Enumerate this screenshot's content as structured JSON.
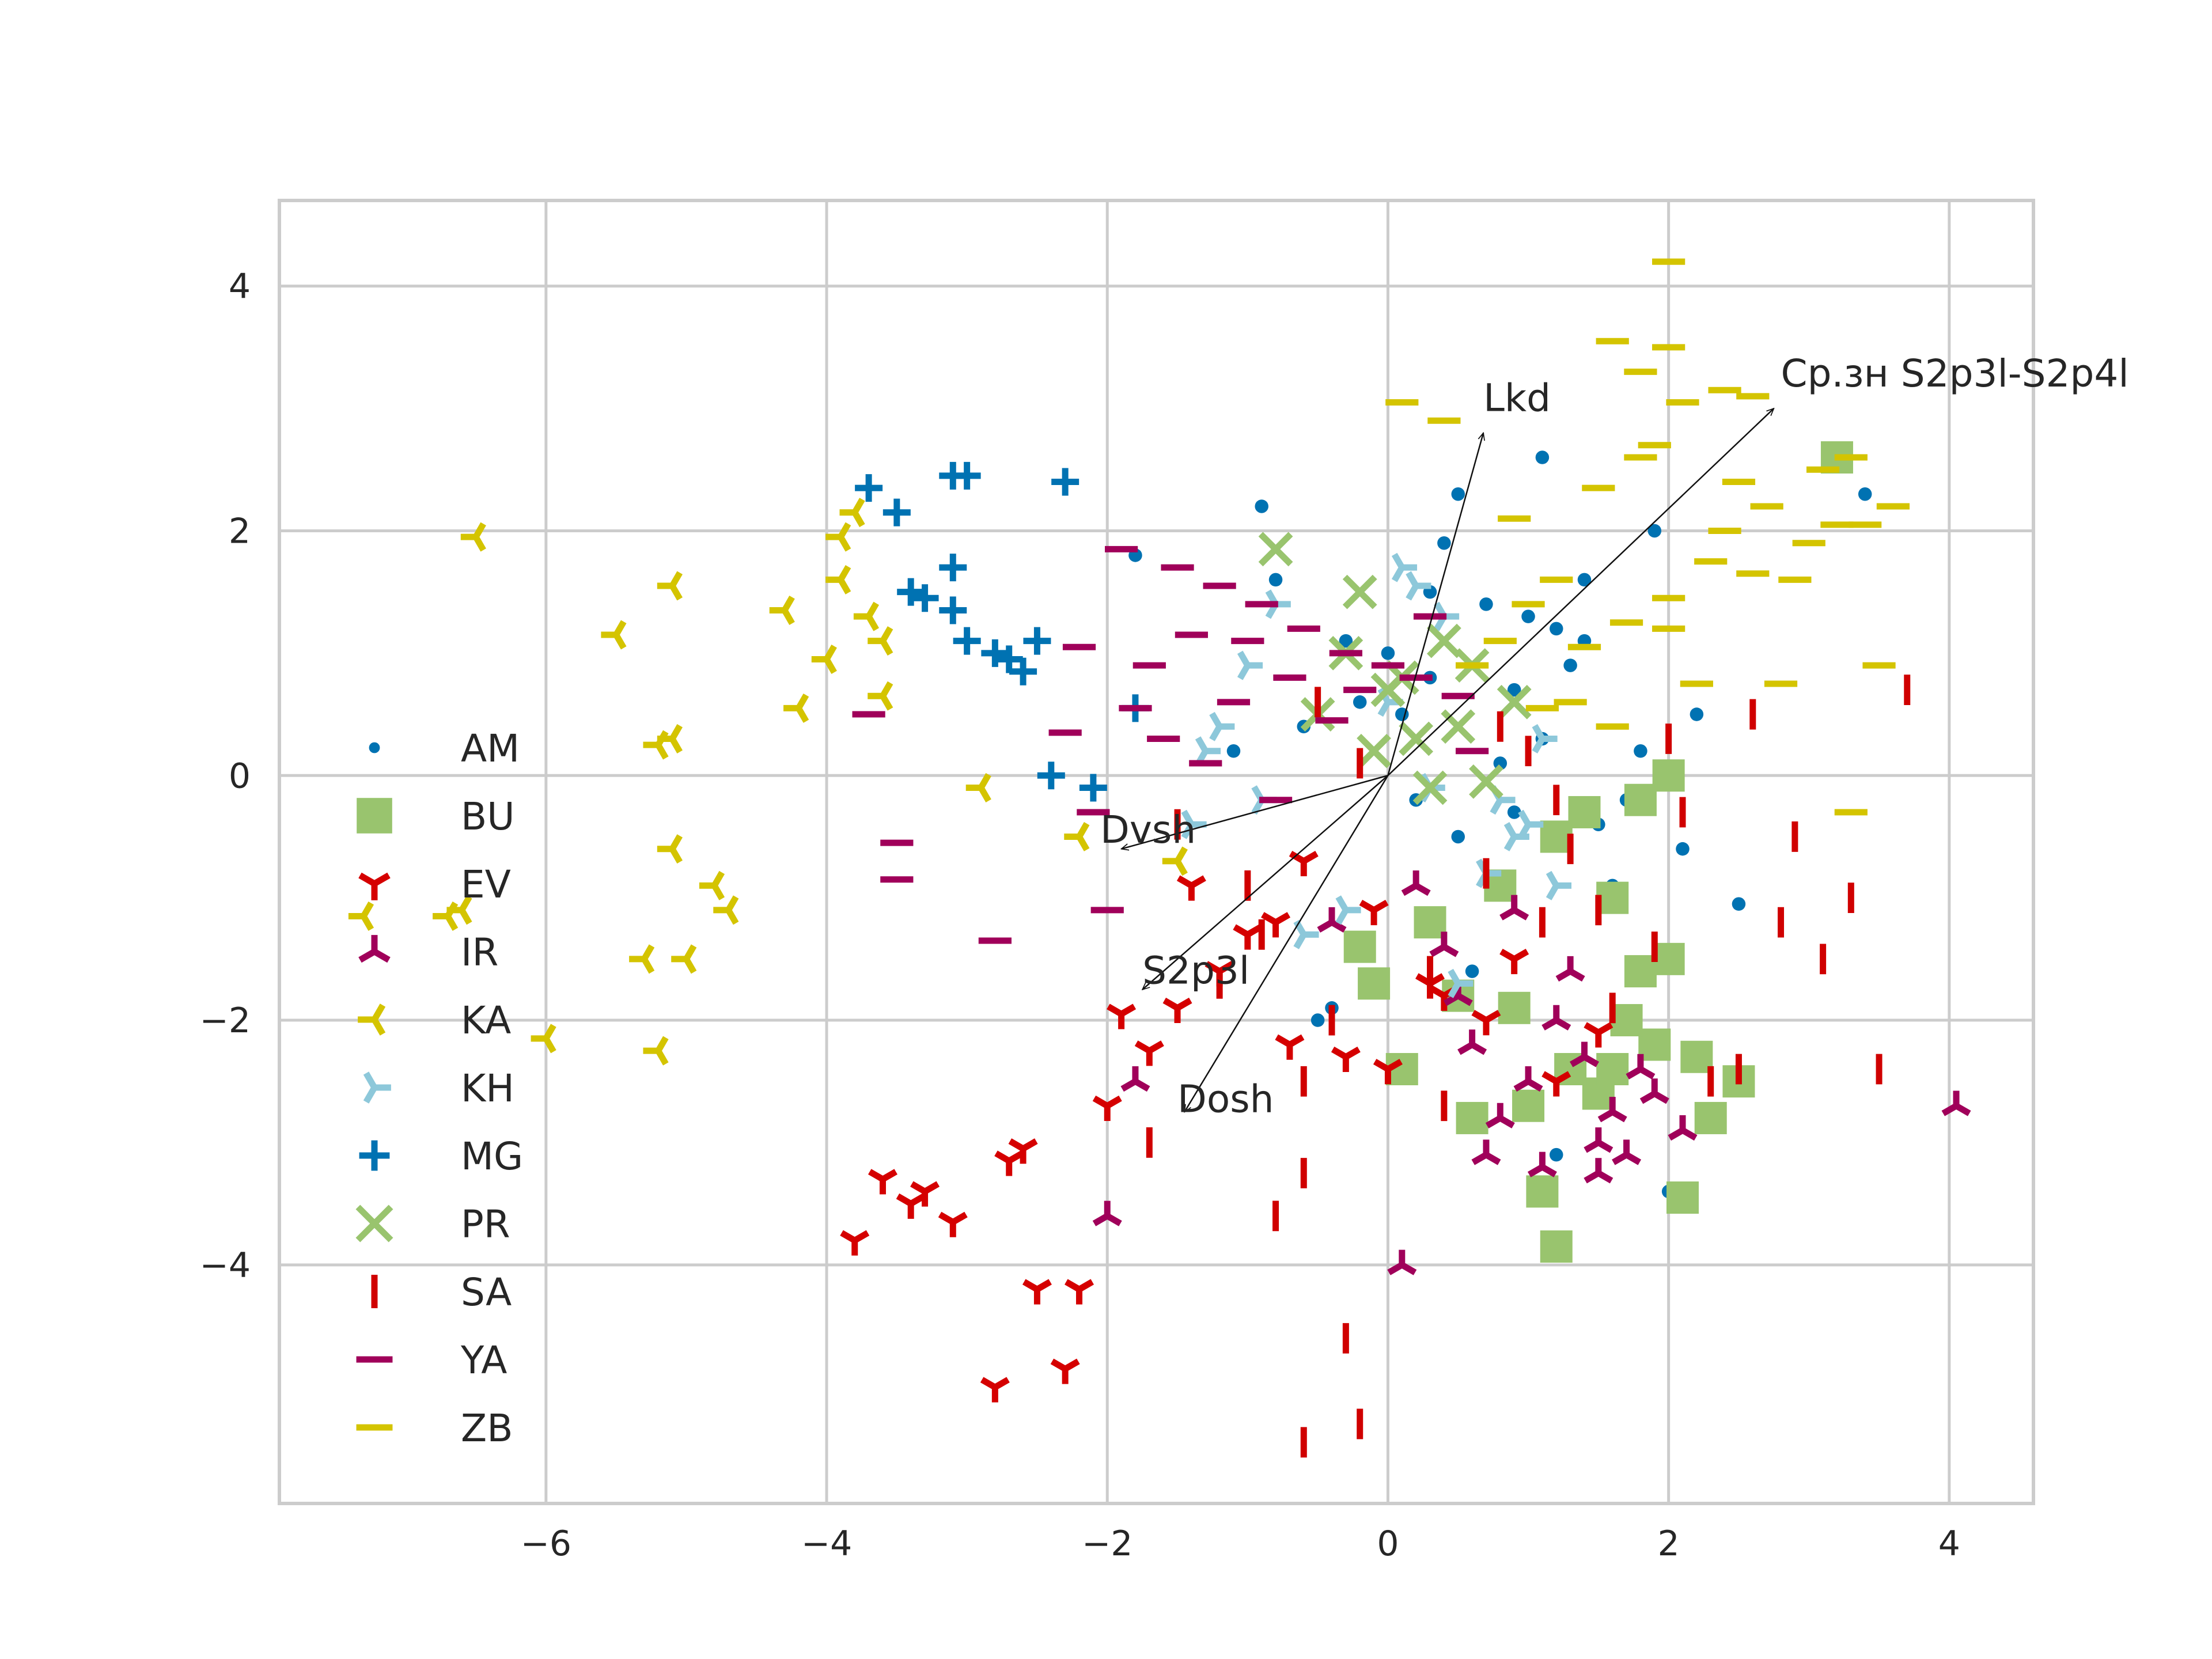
{
  "chart_data": {
    "type": "scatter",
    "title": "",
    "xlabel": "",
    "ylabel": "",
    "xlim": [
      -7.9,
      4.6
    ],
    "ylim": [
      -5.95,
      4.7
    ],
    "xticks": [
      -6,
      -4,
      -2,
      0,
      2,
      4
    ],
    "yticks": [
      -4,
      -2,
      0,
      2,
      4
    ],
    "grid": true,
    "legend_position": "left",
    "series": [
      {
        "name": "AM",
        "marker": "dot",
        "color": "#0072B2",
        "x": [
          1.1,
          0.5,
          1.4,
          1.9,
          3.4,
          -0.9,
          2.5,
          1.2,
          1.0,
          0.3,
          1.6,
          1.8,
          2.1,
          2.0,
          -1.8,
          -0.8,
          0.7,
          0.9,
          1.3,
          -0.3,
          0.2,
          0.6,
          -0.6,
          0.8,
          1.5,
          2.2,
          -0.4,
          1.1,
          0.4,
          -0.2,
          0.0,
          1.7,
          0.5,
          -1.1,
          1.2,
          0.1,
          0.9,
          1.4,
          -0.5,
          0.3
        ],
        "y": [
          2.6,
          2.3,
          1.6,
          2.0,
          2.3,
          2.2,
          -1.05,
          -3.1,
          1.3,
          0.8,
          -0.9,
          0.2,
          -0.6,
          -3.4,
          1.8,
          1.6,
          1.4,
          0.7,
          0.9,
          1.1,
          -0.2,
          -1.6,
          0.4,
          0.1,
          -0.4,
          0.5,
          -1.9,
          0.3,
          1.9,
          0.6,
          1.0,
          -0.2,
          -0.5,
          0.2,
          1.2,
          0.5,
          -0.3,
          1.1,
          -2.0,
          1.5
        ]
      },
      {
        "name": "BU",
        "marker": "square",
        "color": "#99C46E",
        "x": [
          3.2,
          1.2,
          1.1,
          2.1,
          2.2,
          2.5,
          1.6,
          1.8,
          2.0,
          1.5,
          1.3,
          0.6,
          1.0,
          0.9,
          0.1,
          -0.1,
          0.5,
          2.3,
          1.9,
          1.7,
          1.4,
          1.2,
          0.8,
          0.3,
          -0.2,
          2.0,
          1.8,
          1.6
        ],
        "y": [
          2.6,
          -3.85,
          -3.4,
          -3.45,
          -2.3,
          -2.5,
          -1.0,
          -1.6,
          -1.5,
          -2.6,
          -2.4,
          -2.8,
          -2.7,
          -1.9,
          -2.4,
          -1.7,
          -1.8,
          -2.8,
          -2.2,
          -2.0,
          -0.3,
          -0.5,
          -0.9,
          -1.2,
          -1.4,
          0.0,
          -0.2,
          -2.4
        ]
      },
      {
        "name": "EV",
        "marker": "tri_down",
        "color": "#D50000",
        "x": [
          -3.6,
          -3.3,
          -3.4,
          -2.6,
          -2.7,
          -2.2,
          -2.8,
          -2.3,
          -3.1,
          -3.8,
          -2.0,
          -1.7,
          -1.5,
          -1.2,
          -0.8,
          -0.3,
          0.0,
          0.4,
          0.9,
          -1.0,
          -1.4,
          -0.6,
          0.7,
          1.2,
          1.5,
          -2.5,
          -1.9,
          -0.1,
          0.3,
          -0.7
        ],
        "y": [
          -3.3,
          -3.4,
          -3.5,
          -3.05,
          -3.15,
          -4.2,
          -5.0,
          -4.85,
          -3.65,
          -3.8,
          -2.7,
          -2.25,
          -1.9,
          -1.6,
          -1.2,
          -2.3,
          -2.4,
          -1.8,
          -1.5,
          -1.3,
          -0.9,
          -0.7,
          -2.0,
          -2.5,
          -2.1,
          -4.2,
          -1.95,
          -1.1,
          -1.7,
          -2.2
        ]
      },
      {
        "name": "IR",
        "marker": "tri_up",
        "color": "#A0005A",
        "x": [
          4.05,
          1.7,
          0.1,
          -2.0,
          0.7,
          1.5,
          1.0,
          0.8,
          0.5,
          1.2,
          1.4,
          1.9,
          2.1,
          -1.8,
          0.6,
          1.6,
          1.1,
          0.4,
          0.9,
          1.3,
          1.8,
          0.2,
          -0.4,
          1.5
        ],
        "y": [
          -2.7,
          -3.1,
          -4.0,
          -3.6,
          -3.1,
          -3.25,
          -2.5,
          -2.8,
          -1.8,
          -2.0,
          -2.3,
          -2.6,
          -2.9,
          -2.5,
          -2.2,
          -2.75,
          -3.2,
          -1.4,
          -1.1,
          -1.6,
          -2.4,
          -0.9,
          -1.2,
          -3.0
        ]
      },
      {
        "name": "KA",
        "marker": "tri_left",
        "color": "#D4C400",
        "x": [
          -6.5,
          -5.1,
          -5.5,
          -4.3,
          -4.2,
          -3.9,
          -3.8,
          -3.7,
          -3.6,
          -5.1,
          -5.2,
          -5.1,
          -4.8,
          -4.7,
          -5.0,
          -5.2,
          -5.3,
          -6.0,
          -6.7,
          -6.6,
          -7.3,
          -3.9,
          -4.0,
          -3.6,
          -2.9,
          -2.2,
          -1.5
        ],
        "y": [
          1.95,
          1.55,
          1.15,
          1.35,
          0.55,
          1.95,
          2.15,
          1.3,
          1.1,
          0.3,
          0.25,
          -0.6,
          -0.9,
          -1.1,
          -1.5,
          -2.25,
          -1.5,
          -2.15,
          -1.15,
          -1.1,
          -1.15,
          1.6,
          0.95,
          0.65,
          -0.1,
          -0.5,
          -0.7
        ]
      },
      {
        "name": "KH",
        "marker": "tri_right",
        "color": "#8DC8DA",
        "x": [
          0.1,
          0.2,
          0.4,
          0.8,
          1.0,
          1.2,
          -0.8,
          -1.2,
          -1.3,
          -1.4,
          -0.3,
          0.5,
          -0.6,
          0.9,
          1.1,
          -1.0,
          0.3,
          -0.9,
          0.0,
          0.7
        ],
        "y": [
          1.7,
          1.55,
          1.3,
          -0.2,
          -0.4,
          -0.9,
          1.4,
          0.4,
          0.2,
          -0.4,
          -1.1,
          -1.7,
          -1.3,
          -0.5,
          0.3,
          0.9,
          -0.1,
          -0.2,
          0.6,
          -0.8
        ]
      },
      {
        "name": "MG",
        "marker": "plus",
        "color": "#0072B2",
        "x": [
          -3.7,
          -3.5,
          -3.1,
          -3.0,
          -2.3,
          -3.1,
          -3.4,
          -3.3,
          -3.1,
          -3.0,
          -2.8,
          -2.7,
          -2.5,
          -2.6,
          -2.4,
          -2.1,
          -1.8
        ],
        "y": [
          2.35,
          2.15,
          2.45,
          2.45,
          2.4,
          1.7,
          1.5,
          1.45,
          1.35,
          1.1,
          1.0,
          0.95,
          1.1,
          0.85,
          0.0,
          -0.1,
          0.55
        ]
      },
      {
        "name": "PR",
        "marker": "x",
        "color": "#99C46E",
        "x": [
          -0.2,
          0.4,
          0.0,
          0.5,
          0.7,
          -0.8,
          -0.3,
          0.2,
          0.6,
          -0.1,
          0.9,
          0.3,
          -0.5,
          0.1
        ],
        "y": [
          1.5,
          1.1,
          0.7,
          0.4,
          -0.05,
          1.85,
          1.0,
          0.3,
          0.9,
          0.2,
          0.6,
          -0.1,
          0.5,
          0.8
        ],
        "x2": [],
        "y2": []
      },
      {
        "name": "SA",
        "marker": "vline",
        "color": "#D00000",
        "x": [
          -0.6,
          -0.2,
          -0.3,
          -0.6,
          -0.8,
          -1.7,
          -0.6,
          0.4,
          1.1,
          1.5,
          2.1,
          2.6,
          3.3,
          3.5,
          2.8,
          3.1,
          2.3,
          3.7,
          2.9,
          1.9,
          2.0,
          1.3,
          1.0,
          0.7,
          -0.4,
          -1.2,
          -1.5,
          -0.9,
          -0.2,
          0.3,
          0.8,
          1.6,
          2.5,
          1.2,
          -1.0,
          -0.5
        ],
        "y": [
          -5.45,
          -5.3,
          -4.6,
          -3.25,
          -3.6,
          -3.0,
          -2.5,
          -2.7,
          -1.2,
          -1.1,
          -0.3,
          0.5,
          -1.0,
          -2.4,
          -1.2,
          -1.5,
          -2.5,
          0.7,
          -0.5,
          -1.4,
          0.3,
          -0.6,
          0.2,
          -0.8,
          -2.0,
          -1.7,
          -0.4,
          -1.3,
          0.1,
          -1.6,
          0.4,
          -1.9,
          -2.4,
          -0.2,
          -0.9,
          0.6
        ]
      },
      {
        "name": "YA",
        "marker": "hline",
        "color": "#A0005A",
        "x": [
          -3.7,
          -3.5,
          -3.5,
          -2.8,
          -2.0,
          -2.2,
          -1.9,
          -1.5,
          -1.2,
          -0.9,
          -0.6,
          -0.3,
          0.0,
          0.2,
          0.5,
          -1.8,
          -2.3,
          -1.6,
          -1.1,
          -0.7,
          -1.4,
          -2.1,
          -0.4,
          0.3,
          -1.3,
          -0.8,
          -0.2,
          -1.0,
          0.6,
          -1.7
        ],
        "y": [
          0.5,
          -0.55,
          -0.85,
          -1.35,
          -1.1,
          1.05,
          1.85,
          1.7,
          1.55,
          1.4,
          1.2,
          1.0,
          0.9,
          0.8,
          0.65,
          0.55,
          0.35,
          0.3,
          0.6,
          0.8,
          1.15,
          -0.3,
          0.45,
          1.3,
          0.1,
          -0.2,
          0.7,
          1.1,
          0.2,
          0.9
        ]
      },
      {
        "name": "ZB",
        "marker": "hline",
        "color": "#D4C400",
        "x": [
          2.0,
          1.6,
          2.0,
          1.8,
          2.1,
          2.4,
          2.6,
          3.1,
          3.3,
          3.6,
          3.4,
          2.9,
          2.6,
          2.3,
          2.0,
          1.7,
          1.4,
          2.2,
          2.8,
          3.0,
          3.5,
          2.5,
          1.9,
          1.5,
          1.2,
          1.0,
          0.8,
          0.6,
          1.1,
          1.3,
          2.7,
          3.2,
          0.1,
          0.4,
          0.9,
          1.8,
          2.4,
          3.3,
          1.6,
          2.0
        ],
        "y": [
          4.2,
          3.55,
          3.5,
          3.3,
          3.05,
          3.15,
          3.1,
          2.5,
          2.6,
          2.2,
          2.05,
          1.6,
          1.65,
          1.75,
          1.45,
          1.25,
          1.05,
          0.75,
          0.75,
          1.9,
          0.9,
          2.4,
          2.7,
          2.35,
          1.6,
          1.4,
          1.1,
          0.9,
          0.55,
          0.6,
          2.2,
          2.05,
          3.05,
          2.9,
          2.1,
          2.6,
          2.0,
          -0.3,
          0.4,
          1.2
        ]
      }
    ],
    "arrows": [
      {
        "label": "Lkd",
        "x": 0.68,
        "y": 2.8,
        "label_x": 0.68,
        "label_y": 2.98
      },
      {
        "label": "Ср.зн S2p3l-S2p4l",
        "x": 2.75,
        "y": 3.0,
        "label_x": 2.8,
        "label_y": 3.18
      },
      {
        "label": "Dvsh",
        "x": -1.9,
        "y": -0.6,
        "label_x": -2.05,
        "label_y": -0.55
      },
      {
        "label": "S2p3l",
        "x": -1.75,
        "y": -1.75,
        "label_x": -1.75,
        "label_y": -1.7
      },
      {
        "label": "Dosh",
        "x": -1.45,
        "y": -2.75,
        "label_x": -1.5,
        "label_y": -2.75
      }
    ]
  }
}
